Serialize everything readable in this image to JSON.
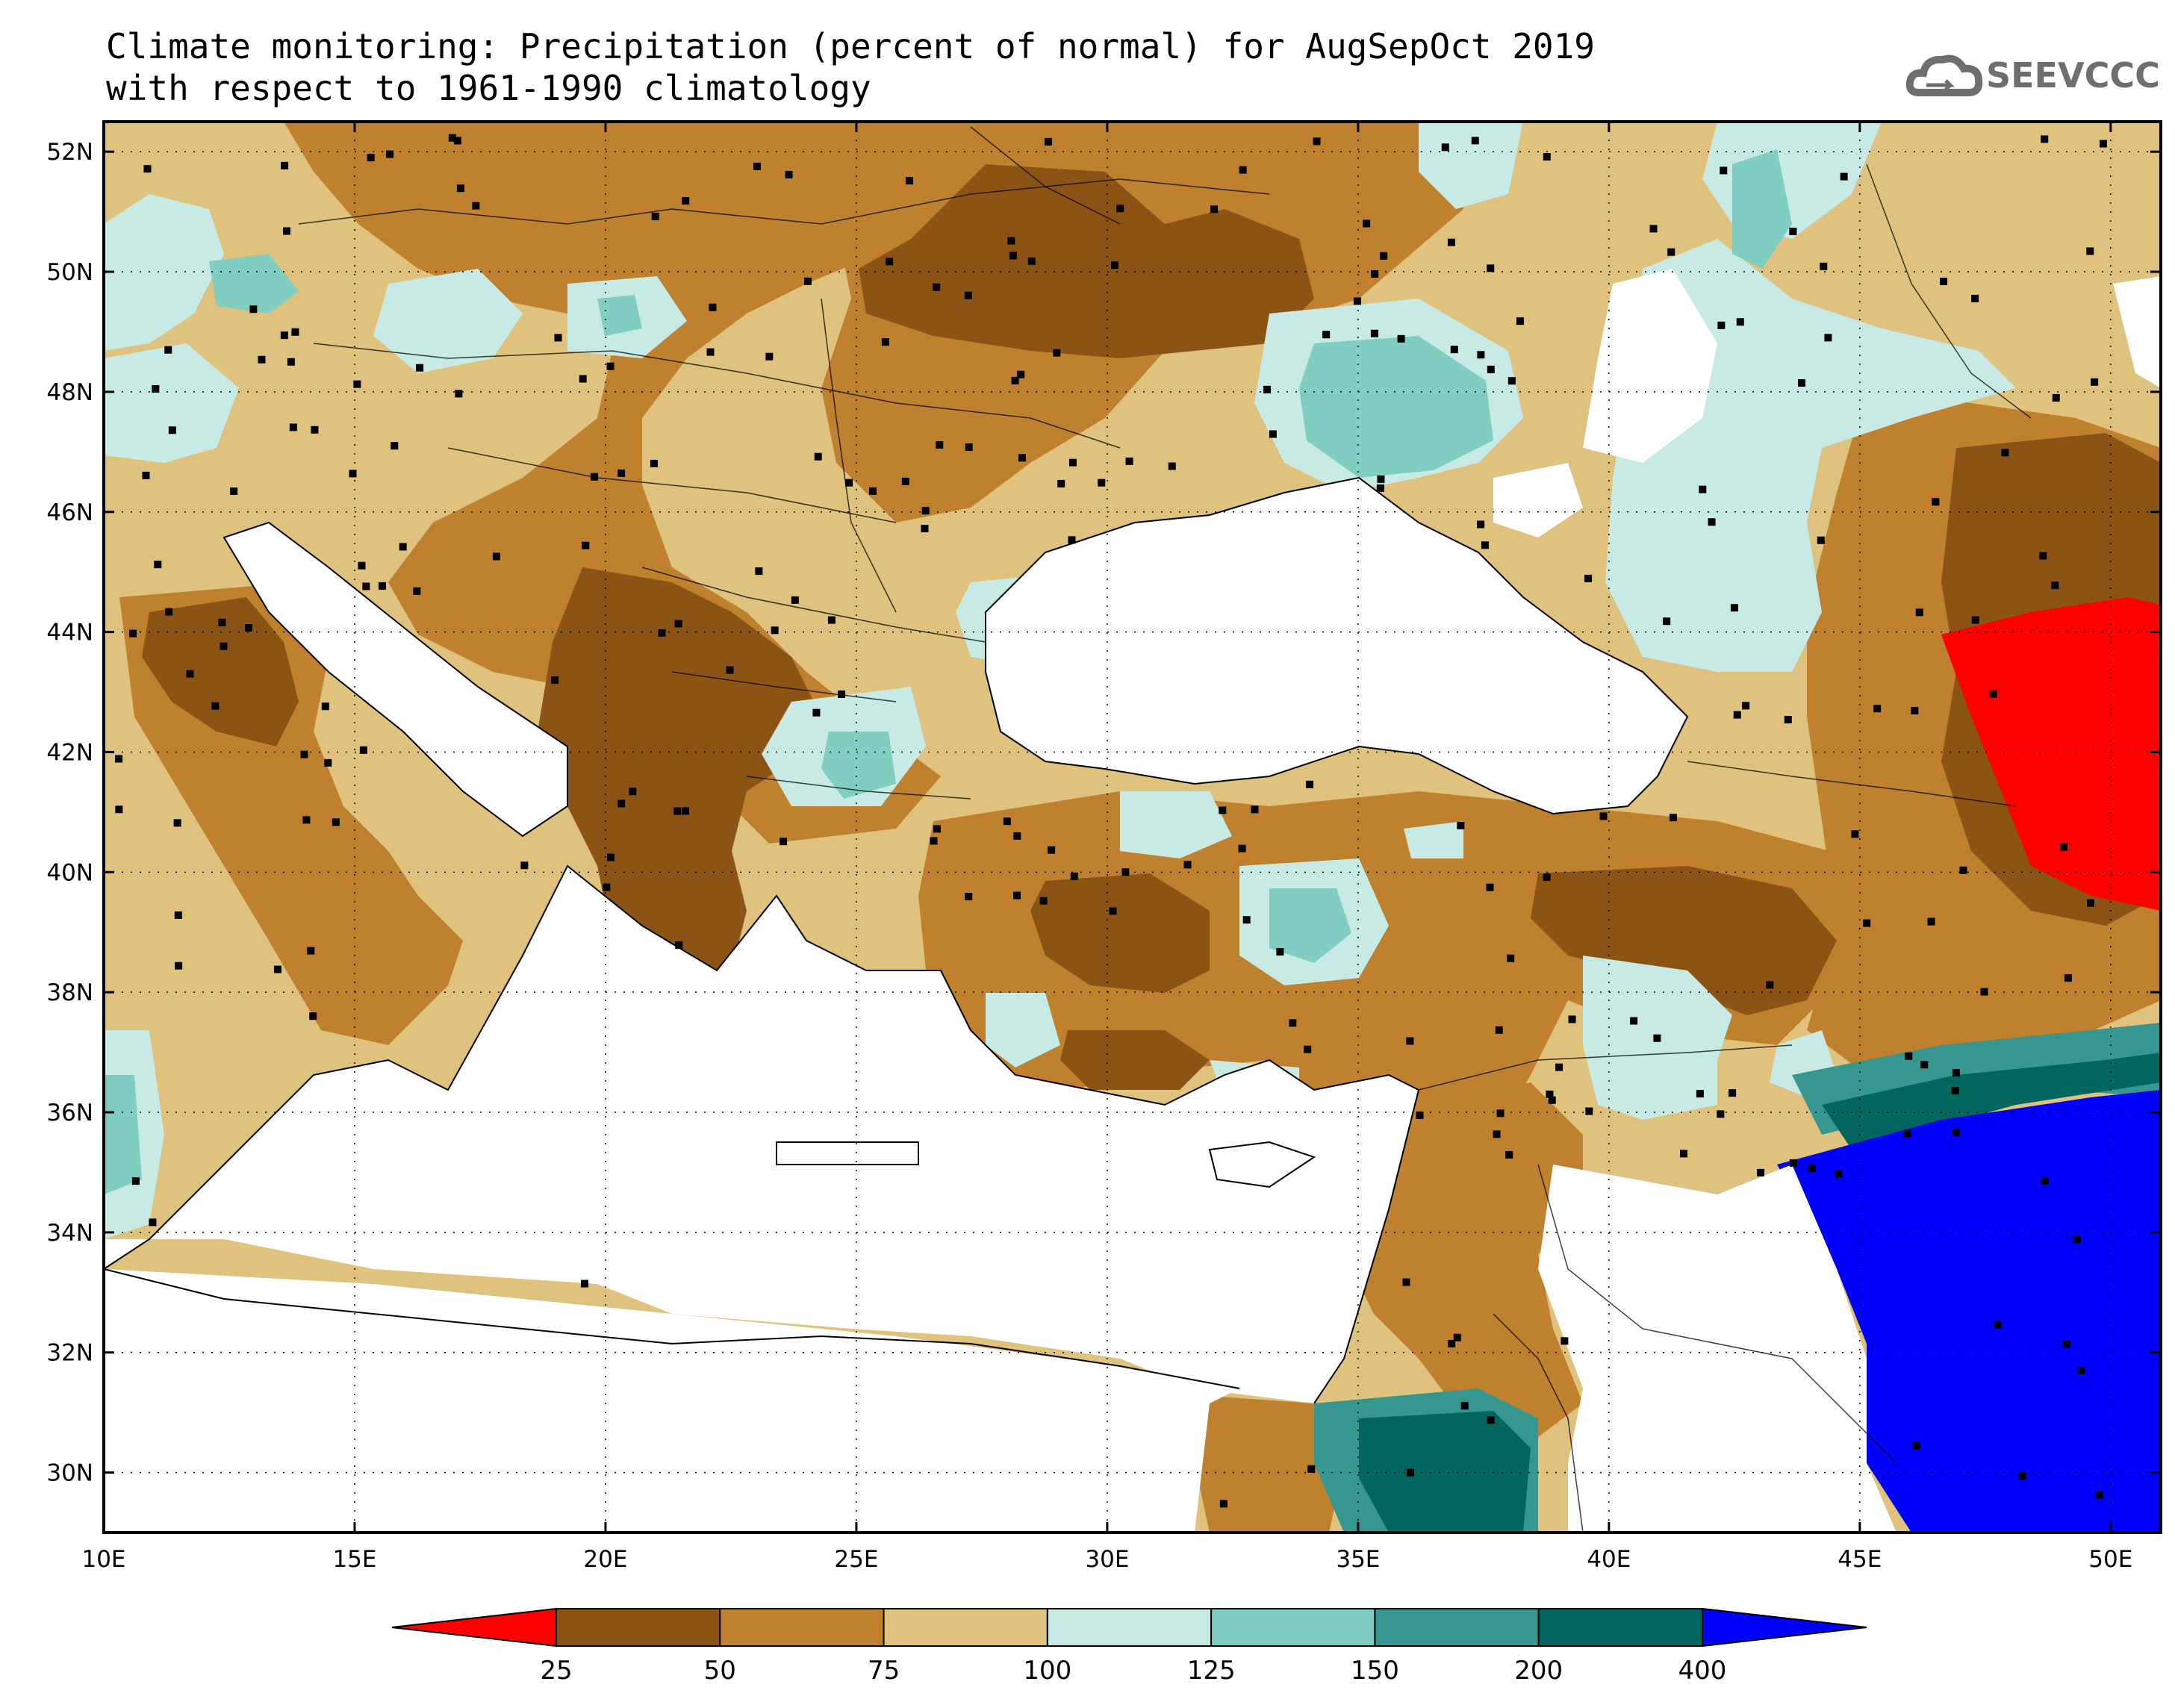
{
  "title": {
    "line1": "Climate monitoring: Precipitation (percent of normal) for AugSepOct 2019",
    "line2": "with respect to 1961-1990 climatology"
  },
  "logo": {
    "text": "SEEVCCC",
    "icon": "cloud-icon",
    "color": "#6e6e6e"
  },
  "map": {
    "lon_range": [
      10,
      51
    ],
    "lat_range": [
      29,
      52.5
    ],
    "x_ticks": [
      "10E",
      "15E",
      "20E",
      "25E",
      "30E",
      "35E",
      "40E",
      "45E",
      "50E"
    ],
    "x_tick_values": [
      10,
      15,
      20,
      25,
      30,
      35,
      40,
      45,
      50
    ],
    "y_ticks": [
      "30N",
      "32N",
      "34N",
      "36N",
      "38N",
      "40N",
      "42N",
      "44N",
      "46N",
      "48N",
      "50N",
      "52N"
    ],
    "y_tick_values": [
      30,
      32,
      34,
      36,
      38,
      40,
      42,
      44,
      46,
      48,
      50,
      52
    ],
    "grid": "dotted"
  },
  "colorbar": {
    "labels": [
      "25",
      "50",
      "75",
      "100",
      "125",
      "150",
      "200",
      "400"
    ],
    "colors": [
      "#ff0000",
      "#8c5414",
      "#bf812d",
      "#dfc27d",
      "#c7eae5",
      "#80cdc1",
      "#35978f",
      "#01665e",
      "#0000ff"
    ]
  },
  "palette": {
    "sea": "#ffffff",
    "c_25": "#ff0000",
    "c_25_50": "#8c5414",
    "c_50_75": "#bf812d",
    "c_75_100": "#dfc27d",
    "c_100_125": "#c7eae5",
    "c_125_150": "#80cdc1",
    "c_150_200": "#35978f",
    "c_200_400": "#01665e",
    "c_400": "#0000ff"
  }
}
